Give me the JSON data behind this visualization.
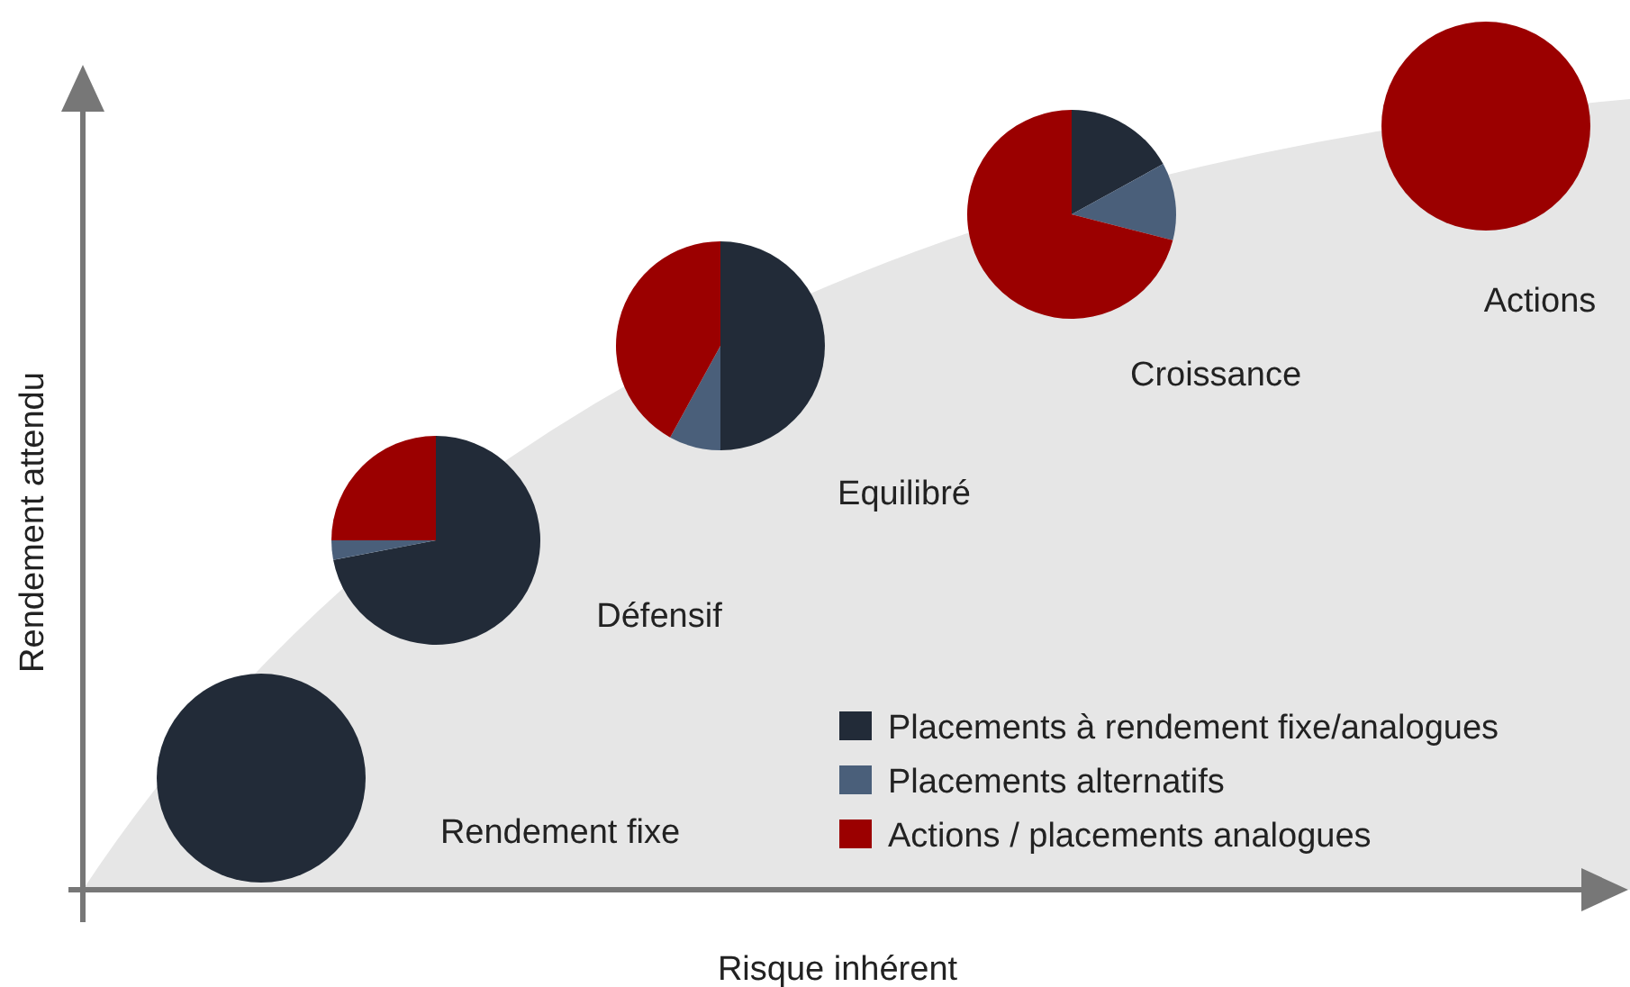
{
  "chart_data": [
    {
      "type": "other",
      "xlabel": "Risque inhérent",
      "ylabel": "Rendement attendu"
    },
    {
      "type": "pie",
      "title": "Rendement fixe",
      "categories": [
        "Placements à rendement fixe/analogues",
        "Placements alternatifs",
        "Actions / placements analogues"
      ],
      "values": [
        100,
        0,
        0
      ],
      "colors": [
        "#222b38",
        "#4a5f7a",
        "#9b0000"
      ],
      "legend": "bottom right"
    },
    {
      "type": "pie",
      "title": "Défensif",
      "categories": [
        null,
        null,
        null
      ],
      "values": [
        72,
        3,
        25
      ],
      "colors": [
        "#222b38",
        "#4a5f7a",
        "#9b0000"
      ]
    },
    {
      "type": "pie",
      "title": "Equilibré",
      "categories": [
        null,
        null,
        null
      ],
      "values": [
        50,
        8,
        42
      ],
      "colors": [
        "#222b38",
        "#4a5f7a",
        "#9b0000"
      ]
    },
    {
      "type": "pie",
      "title": "Croissance",
      "categories": [
        null,
        null,
        null
      ],
      "values": [
        17,
        12,
        71
      ],
      "colors": [
        "#222b38",
        "#4a5f7a",
        "#9b0000"
      ]
    },
    {
      "type": "pie",
      "title": "Actions",
      "categories": [
        null,
        null,
        null
      ],
      "values": [
        0,
        0,
        100
      ],
      "colors": [
        "#222b38",
        "#4a5f7a",
        "#9b0000"
      ]
    }
  ]
}
